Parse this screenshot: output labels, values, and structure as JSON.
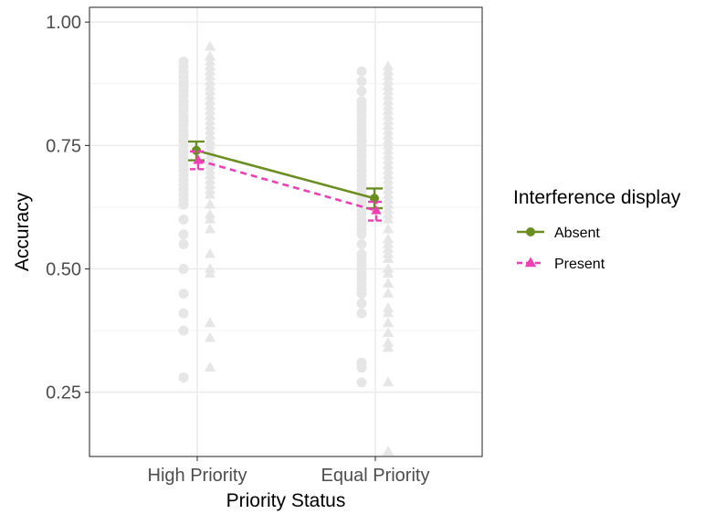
{
  "chart_data": {
    "type": "line",
    "title": "",
    "xlabel": "Priority Status",
    "ylabel": "Accuracy",
    "categories": [
      "High Priority",
      "Equal Priority"
    ],
    "ylim": [
      0.12,
      1.03
    ],
    "yticks": [
      0.25,
      0.5,
      0.75,
      1.0
    ],
    "ytick_labels": [
      "0.25",
      "0.50",
      "0.75",
      "1.00"
    ],
    "grid": true,
    "legend": {
      "title": "Interference display",
      "placement": "right",
      "entries": [
        "Absent",
        "Present"
      ]
    },
    "series": [
      {
        "name": "Absent",
        "color": "#6b8e23",
        "marker": "circle",
        "line_style": "solid",
        "means": [
          0.74,
          0.643
        ],
        "error_low": [
          0.72,
          0.623
        ],
        "error_high": [
          0.758,
          0.663
        ]
      },
      {
        "name": "Present",
        "color": "#ee3fb4",
        "marker": "triangle",
        "line_style": "dashed",
        "means": [
          0.72,
          0.618
        ],
        "error_low": [
          0.702,
          0.598
        ],
        "error_high": [
          0.738,
          0.636
        ]
      }
    ],
    "raw_points": [
      {
        "series": "Absent",
        "category": "High Priority",
        "values": [
          0.92,
          0.91,
          0.9,
          0.89,
          0.88,
          0.87,
          0.86,
          0.85,
          0.84,
          0.83,
          0.82,
          0.81,
          0.8,
          0.79,
          0.78,
          0.77,
          0.76,
          0.75,
          0.74,
          0.73,
          0.72,
          0.71,
          0.7,
          0.69,
          0.68,
          0.67,
          0.66,
          0.65,
          0.64,
          0.63,
          0.6,
          0.57,
          0.55,
          0.5,
          0.45,
          0.41,
          0.375,
          0.28
        ]
      },
      {
        "series": "Present",
        "category": "High Priority",
        "values": [
          0.95,
          0.93,
          0.92,
          0.91,
          0.9,
          0.89,
          0.88,
          0.87,
          0.86,
          0.85,
          0.84,
          0.83,
          0.82,
          0.81,
          0.8,
          0.79,
          0.78,
          0.77,
          0.76,
          0.75,
          0.74,
          0.73,
          0.72,
          0.71,
          0.7,
          0.69,
          0.68,
          0.67,
          0.66,
          0.65,
          0.63,
          0.61,
          0.6,
          0.58,
          0.53,
          0.5,
          0.49,
          0.39,
          0.36,
          0.3
        ]
      },
      {
        "series": "Absent",
        "category": "Equal Priority",
        "values": [
          0.9,
          0.88,
          0.86,
          0.84,
          0.83,
          0.82,
          0.81,
          0.8,
          0.79,
          0.78,
          0.77,
          0.76,
          0.75,
          0.74,
          0.73,
          0.72,
          0.71,
          0.7,
          0.69,
          0.68,
          0.67,
          0.66,
          0.65,
          0.64,
          0.63,
          0.62,
          0.61,
          0.6,
          0.59,
          0.58,
          0.57,
          0.55,
          0.53,
          0.52,
          0.51,
          0.5,
          0.49,
          0.48,
          0.47,
          0.46,
          0.45,
          0.43,
          0.41,
          0.31,
          0.3,
          0.27
        ]
      },
      {
        "series": "Present",
        "category": "Equal Priority",
        "values": [
          0.91,
          0.9,
          0.89,
          0.88,
          0.87,
          0.86,
          0.85,
          0.84,
          0.83,
          0.82,
          0.81,
          0.8,
          0.79,
          0.78,
          0.77,
          0.76,
          0.75,
          0.74,
          0.73,
          0.72,
          0.71,
          0.7,
          0.69,
          0.68,
          0.67,
          0.66,
          0.65,
          0.64,
          0.63,
          0.62,
          0.61,
          0.6,
          0.58,
          0.56,
          0.55,
          0.54,
          0.53,
          0.52,
          0.5,
          0.49,
          0.47,
          0.45,
          0.42,
          0.41,
          0.39,
          0.37,
          0.35,
          0.34,
          0.27,
          0.13
        ]
      }
    ]
  }
}
